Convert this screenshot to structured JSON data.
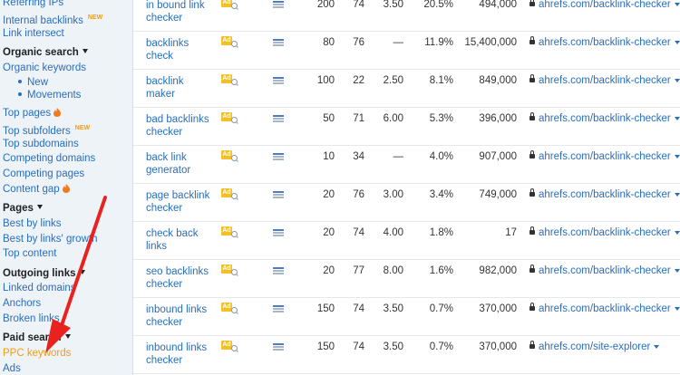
{
  "sidebar": {
    "items": [
      {
        "label": "Referring IPs",
        "type": "link"
      },
      {
        "label": "Internal backlinks",
        "type": "link",
        "badge": "NEW"
      },
      {
        "label": "Link intersect",
        "type": "link"
      },
      {
        "label": "Organic search",
        "type": "head"
      },
      {
        "label": "Organic keywords",
        "type": "link"
      },
      {
        "label": "New",
        "type": "sub"
      },
      {
        "label": "Movements",
        "type": "sub"
      },
      {
        "label": "Top pages",
        "type": "link",
        "icon": "fire-icon"
      },
      {
        "label": "Top subfolders",
        "type": "link",
        "badge": "NEW"
      },
      {
        "label": "Top subdomains",
        "type": "link"
      },
      {
        "label": "Competing domains",
        "type": "link"
      },
      {
        "label": "Competing pages",
        "type": "link"
      },
      {
        "label": "Content gap",
        "type": "link",
        "icon": "fire-icon"
      },
      {
        "label": "Pages",
        "type": "head"
      },
      {
        "label": "Best by links",
        "type": "link"
      },
      {
        "label": "Best by links' growth",
        "type": "link"
      },
      {
        "label": "Top content",
        "type": "link"
      },
      {
        "label": "Outgoing links",
        "type": "head"
      },
      {
        "label": "Linked domains",
        "type": "link"
      },
      {
        "label": "Anchors",
        "type": "link"
      },
      {
        "label": "Broken links",
        "type": "link"
      },
      {
        "label": "Paid search",
        "type": "head"
      },
      {
        "label": "PPC keywords",
        "type": "active"
      },
      {
        "label": "Ads",
        "type": "link"
      }
    ]
  },
  "ad_badge": "Ad",
  "rows": [
    {
      "kw1": "in bound link",
      "kw2": "checker",
      "volume": "200",
      "kd": "74",
      "cpc": "3.50",
      "traffic": "20.5%",
      "count": "494,000",
      "url": "ahrefs.com/backlink-checker"
    },
    {
      "kw1": "backlinks",
      "kw2": "check",
      "volume": "80",
      "kd": "76",
      "cpc": "—",
      "traffic": "11.9%",
      "count": "15,400,000",
      "url": "ahrefs.com/backlink-checker"
    },
    {
      "kw1": "backlink",
      "kw2": "maker",
      "volume": "100",
      "kd": "22",
      "cpc": "2.50",
      "traffic": "8.1%",
      "count": "849,000",
      "url": "ahrefs.com/backlink-checker"
    },
    {
      "kw1": "bad backlinks",
      "kw2": "checker",
      "volume": "50",
      "kd": "71",
      "cpc": "6.00",
      "traffic": "5.3%",
      "count": "396,000",
      "url": "ahrefs.com/backlink-checker"
    },
    {
      "kw1": "back link",
      "kw2": "generator",
      "volume": "10",
      "kd": "34",
      "cpc": "—",
      "traffic": "4.0%",
      "count": "907,000",
      "url": "ahrefs.com/backlink-checker"
    },
    {
      "kw1": "page backlink",
      "kw2": "checker",
      "volume": "20",
      "kd": "76",
      "cpc": "3.00",
      "traffic": "3.4%",
      "count": "749,000",
      "url": "ahrefs.com/backlink-checker"
    },
    {
      "kw1": "check back",
      "kw2": "links",
      "volume": "20",
      "kd": "74",
      "cpc": "4.00",
      "traffic": "1.8%",
      "count": "17",
      "url": "ahrefs.com/backlink-checker"
    },
    {
      "kw1": "seo backlinks",
      "kw2": "checker",
      "volume": "20",
      "kd": "77",
      "cpc": "8.00",
      "traffic": "1.6%",
      "count": "982,000",
      "url": "ahrefs.com/backlink-checker"
    },
    {
      "kw1": "inbound links",
      "kw2": "checker",
      "volume": "150",
      "kd": "74",
      "cpc": "3.50",
      "traffic": "0.7%",
      "count": "370,000",
      "url": "ahrefs.com/backlink-checker"
    },
    {
      "kw1": "inbound links",
      "kw2": "checker",
      "volume": "150",
      "kd": "74",
      "cpc": "3.50",
      "traffic": "0.7%",
      "count": "370,000",
      "url": "ahrefs.com/site-explorer"
    }
  ],
  "colors": {
    "accent": "#2a6ebb",
    "active": "#f39c12",
    "arrow": "#e8231f",
    "ad": "#f3c02b"
  }
}
